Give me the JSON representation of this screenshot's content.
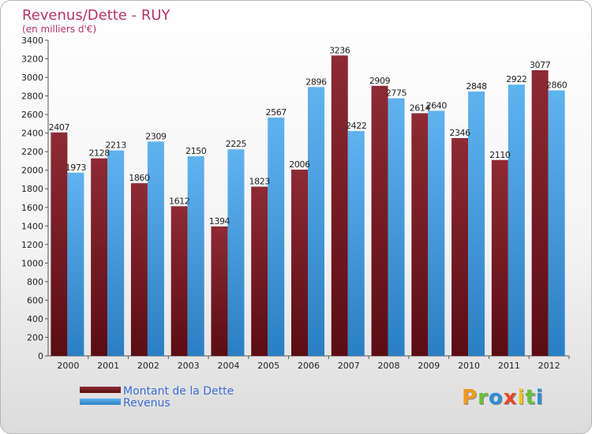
{
  "chart_data": {
    "type": "bar",
    "title": "Revenus/Dette - RUY",
    "subtitle": "(en milliers d'€)",
    "categories": [
      "2000",
      "2001",
      "2002",
      "2003",
      "2004",
      "2005",
      "2006",
      "2007",
      "2008",
      "2009",
      "2010",
      "2011",
      "2012"
    ],
    "series": [
      {
        "name": "Montant de la Dette",
        "color": "#7a1e26",
        "values": [
          2407,
          2128,
          1860,
          1612,
          1394,
          1823,
          2006,
          3236,
          2909,
          2614,
          2346,
          2110,
          3077
        ]
      },
      {
        "name": "Revenus",
        "color": "#3d9ae0",
        "values": [
          1973,
          2213,
          2309,
          2150,
          2225,
          2567,
          2896,
          2422,
          2775,
          2640,
          2848,
          2922,
          2860
        ]
      }
    ],
    "ylim": [
      0,
      3400
    ],
    "ytick_step": 200,
    "grid": false,
    "legend": "bottom-left"
  },
  "brand": {
    "letters": [
      "P",
      "r",
      "o",
      "x",
      "i",
      "t",
      "i"
    ],
    "colors": [
      "#f29a1d",
      "#6abf3a",
      "#2d8fd6",
      "#e8462b",
      "#f2c21b",
      "#6abf3a",
      "#2d8fd6"
    ]
  }
}
